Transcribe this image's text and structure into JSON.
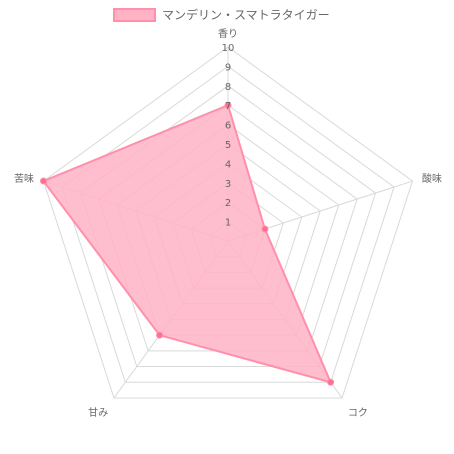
{
  "chart_data": {
    "type": "radar",
    "axes": [
      "香り",
      "酸味",
      "コク",
      "甘み",
      "苦味"
    ],
    "series": [
      {
        "name": "マンデリン・スマトラタイガー",
        "values": [
          7,
          2,
          9,
          6,
          10
        ]
      }
    ],
    "ticks": [
      "1",
      "2",
      "3",
      "4",
      "5",
      "6",
      "7",
      "8",
      "9",
      "10"
    ],
    "rmin": 0,
    "rmax": 10,
    "legend_position": "top",
    "colors": {
      "fill": "#ffb3c4",
      "stroke": "#ff8fab",
      "point": "#ff6f8e",
      "grid": "#d9d9d9"
    }
  }
}
